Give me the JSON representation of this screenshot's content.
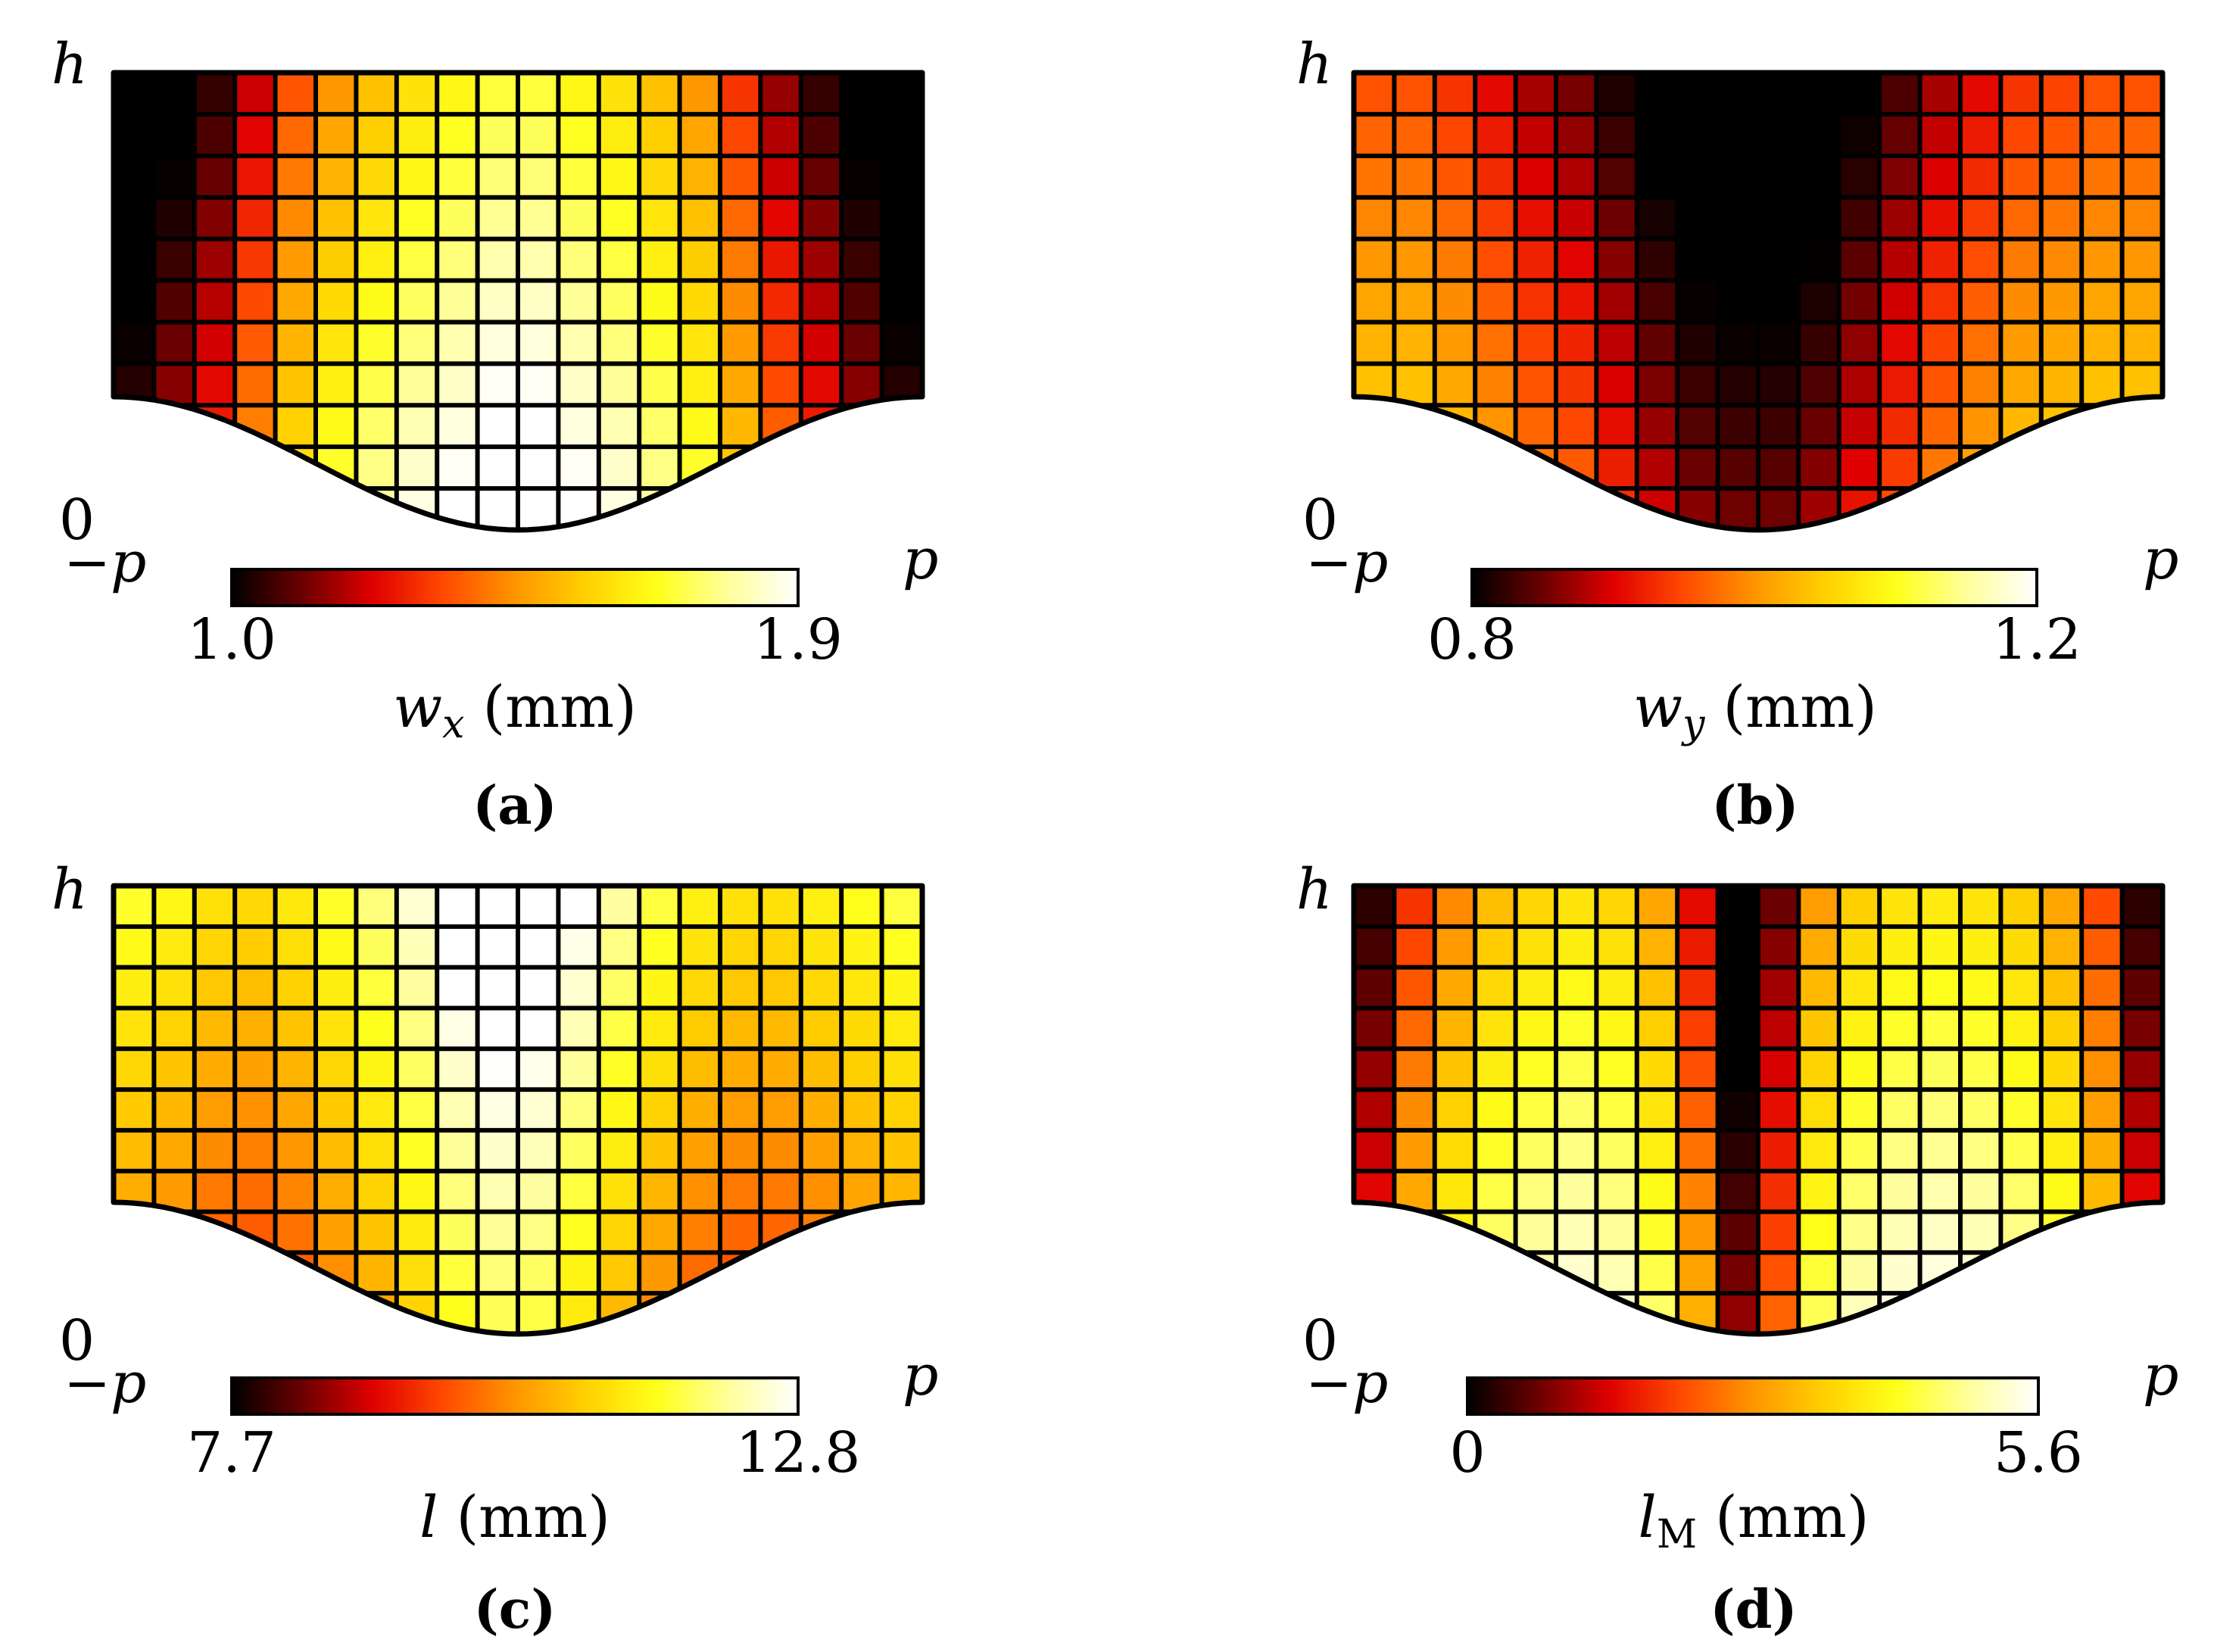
{
  "figure": {
    "colormap": [
      "#000000",
      "#6b0000",
      "#e00000",
      "#ff4a00",
      "#ff9500",
      "#ffd000",
      "#ffff1a",
      "#ffff99",
      "#ffffff"
    ],
    "line_color": "#000000"
  },
  "chart_data": [
    {
      "id": "a",
      "type": "heatmap",
      "panel_label": "(a)",
      "title": "",
      "y_top_label": "h",
      "y_bottom_label": "0",
      "x_left_label": "−p",
      "x_right_label": "p",
      "colorbar": {
        "min": 1.0,
        "max": 1.9,
        "min_label": "1.0",
        "max_label": "1.9",
        "symbol": "w",
        "subscript": "x",
        "unit": "(mm)"
      },
      "columns": 20,
      "rows": 11,
      "column_profile": [
        1.0,
        1.1,
        1.2,
        1.35,
        1.5,
        1.6,
        1.68,
        1.75,
        1.8,
        1.85,
        1.85,
        1.8,
        1.75,
        1.68,
        1.6,
        1.45,
        1.3,
        1.2,
        1.1,
        1.0
      ],
      "vertical_trend": "brighter toward the wavy bottom boundary"
    },
    {
      "id": "b",
      "type": "heatmap",
      "panel_label": "(b)",
      "title": "",
      "y_top_label": "h",
      "y_bottom_label": "0",
      "x_left_label": "−p",
      "x_right_label": "p",
      "colorbar": {
        "min": 0.8,
        "max": 1.2,
        "min_label": "0.8",
        "max_label": "1.2",
        "symbol": "w",
        "subscript": "y",
        "unit": "(mm)"
      },
      "columns": 20,
      "rows": 11,
      "column_profile": [
        1.02,
        1.02,
        1.0,
        0.97,
        0.94,
        0.92,
        0.88,
        0.84,
        0.81,
        0.8,
        0.8,
        0.82,
        0.86,
        0.9,
        0.94,
        0.97,
        1.0,
        1.01,
        1.02,
        1.02
      ],
      "vertical_trend": "brighter toward the wavy bottom boundary"
    },
    {
      "id": "c",
      "type": "heatmap",
      "panel_label": "(c)",
      "title": "",
      "y_top_label": "h",
      "y_bottom_label": "0",
      "x_left_label": "−p",
      "x_right_label": "p",
      "colorbar": {
        "min": 7.7,
        "max": 12.8,
        "min_label": "7.7",
        "max_label": "12.8",
        "symbol": "l",
        "subscript": "",
        "unit": "(mm)"
      },
      "columns": 20,
      "rows": 11,
      "column_profile": [
        11.0,
        10.8,
        10.5,
        10.4,
        10.6,
        11.0,
        11.4,
        11.9,
        12.5,
        12.8,
        12.7,
        12.2,
        11.6,
        11.1,
        10.7,
        10.5,
        10.5,
        10.7,
        10.9,
        11.1
      ],
      "vertical_trend": "darker toward the wavy bottom boundary"
    },
    {
      "id": "d",
      "type": "heatmap",
      "panel_label": "(d)",
      "title": "",
      "y_top_label": "h",
      "y_bottom_label": "0",
      "x_left_label": "−p",
      "x_right_label": "p",
      "colorbar": {
        "min": 0,
        "max": 5.6,
        "min_label": "0",
        "max_label": "5.6",
        "symbol": "l",
        "subscript": "M",
        "unit": "(mm)"
      },
      "columns": 20,
      "rows": 11,
      "column_profile": [
        1.2,
        2.8,
        3.6,
        4.2,
        4.5,
        4.7,
        4.5,
        3.9,
        2.4,
        0.2,
        1.6,
        3.8,
        4.4,
        4.7,
        4.8,
        4.7,
        4.4,
        3.9,
        3.0,
        1.2
      ],
      "vertical_trend": "brighter toward the wavy bottom boundary"
    }
  ]
}
